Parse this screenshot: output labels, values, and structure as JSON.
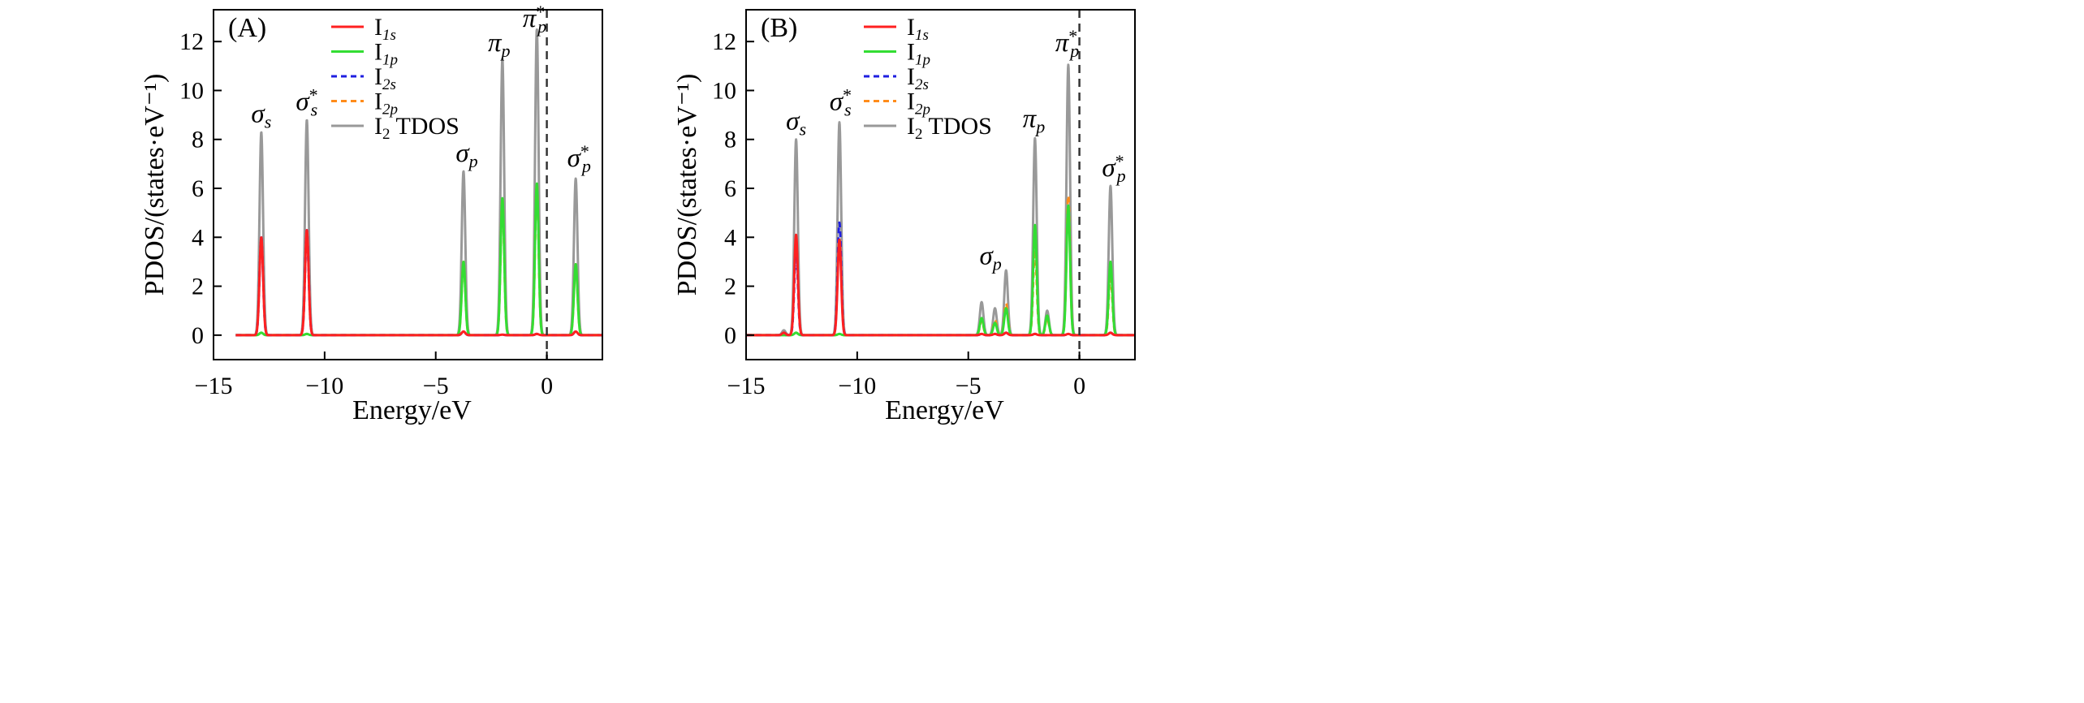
{
  "figure": {
    "panels": [
      "A",
      "B"
    ]
  },
  "chart_data": [
    {
      "type": "line",
      "panel_label": "(A)",
      "xlabel": "Energy/eV",
      "ylabel": "PDOS/(states·eV⁻¹)",
      "xlim": [
        -15,
        2.5
      ],
      "ylim": [
        -1,
        13.3
      ],
      "xticks": [
        -15,
        -10,
        -5,
        0
      ],
      "xtick_labels": [
        "−15",
        "−10",
        "−5",
        "0"
      ],
      "yticks": [
        0,
        2,
        4,
        6,
        8,
        10,
        12
      ],
      "ytick_labels": [
        "0",
        "2",
        "4",
        "6",
        "8",
        "10",
        "12"
      ],
      "fermi_level": 0,
      "x_start": -14,
      "legend": {
        "placement": "top-center",
        "entries": [
          {
            "base": "I",
            "sub": "1s",
            "tail": "",
            "color": "#ff2020",
            "dash": "solid"
          },
          {
            "base": "I",
            "sub": "1p",
            "tail": "",
            "color": "#33dd33",
            "dash": "solid"
          },
          {
            "base": "I",
            "sub": "2s",
            "tail": "",
            "color": "#1f1fe0",
            "dash": "dashed"
          },
          {
            "base": "I",
            "sub": "2p",
            "tail": "",
            "color": "#ff8c1a",
            "dash": "dashed"
          },
          {
            "base": "I",
            "sub": "2",
            "tail": " TDOS",
            "color": "#999999",
            "dash": "solid"
          }
        ]
      },
      "series": [
        {
          "name": "I1s",
          "color": "#ff2020",
          "dash": "solid",
          "width": 0.08,
          "peaks": [
            [
              -12.85,
              4.0
            ],
            [
              -10.8,
              4.3
            ],
            [
              -3.75,
              0.15
            ],
            [
              -2.0,
              0.02
            ],
            [
              -0.45,
              0.05
            ],
            [
              1.3,
              0.15
            ]
          ]
        },
        {
          "name": "I1p",
          "color": "#33dd33",
          "dash": "solid",
          "width": 0.08,
          "peaks": [
            [
              -12.85,
              0.1
            ],
            [
              -10.8,
              0.05
            ],
            [
              -3.75,
              3.0
            ],
            [
              -2.0,
              5.6
            ],
            [
              -0.45,
              6.2
            ],
            [
              1.3,
              2.9
            ]
          ]
        },
        {
          "name": "I2s",
          "color": "#1f1fe0",
          "dash": "dashed",
          "width": 0.08,
          "peaks": [
            [
              -12.85,
              4.0
            ],
            [
              -10.8,
              4.3
            ],
            [
              -3.75,
              0.15
            ],
            [
              -2.0,
              0.02
            ],
            [
              -0.45,
              0.05
            ],
            [
              1.3,
              0.15
            ]
          ]
        },
        {
          "name": "I2p",
          "color": "#ff8c1a",
          "dash": "dashed",
          "width": 0.08,
          "peaks": [
            [
              -12.85,
              0.1
            ],
            [
              -10.8,
              0.05
            ],
            [
              -3.75,
              3.0
            ],
            [
              -2.0,
              5.6
            ],
            [
              -0.45,
              6.2
            ],
            [
              1.3,
              2.9
            ]
          ]
        },
        {
          "name": "I2 TDOS",
          "color": "#999999",
          "dash": "solid",
          "width": 0.08,
          "peaks": [
            [
              -12.85,
              8.3
            ],
            [
              -10.8,
              8.8
            ],
            [
              -3.75,
              6.7
            ],
            [
              -2.0,
              11.3
            ],
            [
              -0.45,
              12.5
            ],
            [
              1.3,
              6.4
            ]
          ]
        }
      ],
      "peak_labels": [
        {
          "x": -12.85,
          "y": 8.7,
          "base": "σ",
          "sub": "s",
          "star": ""
        },
        {
          "x": -10.8,
          "y": 9.2,
          "base": "σ",
          "sub": "s",
          "star": "*"
        },
        {
          "x": -3.6,
          "y": 7.1,
          "base": "σ",
          "sub": "p",
          "star": ""
        },
        {
          "x": -2.15,
          "y": 11.6,
          "base": "π",
          "sub": "p",
          "star": ""
        },
        {
          "x": -0.55,
          "y": 12.6,
          "base": "π",
          "sub": "p",
          "star": "*"
        },
        {
          "x": 1.45,
          "y": 6.9,
          "base": "σ",
          "sub": "p",
          "star": "*"
        }
      ]
    },
    {
      "type": "line",
      "panel_label": "(B)",
      "xlabel": "Energy/eV",
      "ylabel": "PDOS/(states·eV⁻¹)",
      "xlim": [
        -15,
        2.5
      ],
      "ylim": [
        -1,
        13.3
      ],
      "xticks": [
        -15,
        -10,
        -5,
        0
      ],
      "xtick_labels": [
        "−15",
        "−10",
        "−5",
        "0"
      ],
      "yticks": [
        0,
        2,
        4,
        6,
        8,
        10,
        12
      ],
      "ytick_labels": [
        "0",
        "2",
        "4",
        "6",
        "8",
        "10",
        "12"
      ],
      "fermi_level": 0,
      "x_start": -15,
      "legend": {
        "placement": "top-center",
        "entries": [
          {
            "base": "I",
            "sub": "1s",
            "tail": "",
            "color": "#ff2020",
            "dash": "solid"
          },
          {
            "base": "I",
            "sub": "1p",
            "tail": "",
            "color": "#33dd33",
            "dash": "solid"
          },
          {
            "base": "I",
            "sub": "2s",
            "tail": "",
            "color": "#1f1fe0",
            "dash": "dashed"
          },
          {
            "base": "I",
            "sub": "2p",
            "tail": "",
            "color": "#ff8c1a",
            "dash": "dashed"
          },
          {
            "base": "I",
            "sub": "2",
            "tail": " TDOS",
            "color": "#999999",
            "dash": "solid"
          }
        ]
      },
      "series": [
        {
          "name": "I1s",
          "color": "#ff2020",
          "dash": "solid",
          "width": 0.08,
          "peaks": [
            [
              -13.3,
              0.1
            ],
            [
              -12.75,
              4.1
            ],
            [
              -10.8,
              3.9
            ],
            [
              -4.4,
              0.05
            ],
            [
              -3.8,
              0.05
            ],
            [
              -3.3,
              0.1
            ],
            [
              -2.0,
              0.05
            ],
            [
              -0.5,
              0.05
            ],
            [
              1.4,
              0.1
            ]
          ]
        },
        {
          "name": "I1p",
          "color": "#33dd33",
          "dash": "solid",
          "width": 0.08,
          "peaks": [
            [
              -12.75,
              0.1
            ],
            [
              -10.8,
              0.05
            ],
            [
              -4.4,
              0.7
            ],
            [
              -3.8,
              0.5
            ],
            [
              -3.3,
              1.1
            ],
            [
              -2.0,
              4.5
            ],
            [
              -1.45,
              0.8
            ],
            [
              -0.5,
              5.3
            ],
            [
              1.4,
              3.0
            ]
          ]
        },
        {
          "name": "I2s",
          "color": "#1f1fe0",
          "dash": "dashed",
          "width": 0.08,
          "peaks": [
            [
              -13.3,
              0.1
            ],
            [
              -12.75,
              3.5
            ],
            [
              -10.8,
              4.6
            ],
            [
              -4.4,
              0.05
            ],
            [
              -3.8,
              0.05
            ],
            [
              -3.3,
              0.1
            ],
            [
              -2.0,
              0.05
            ],
            [
              -0.5,
              0.05
            ],
            [
              1.4,
              0.1
            ]
          ]
        },
        {
          "name": "I2p",
          "color": "#ff8c1a",
          "dash": "dashed",
          "width": 0.08,
          "peaks": [
            [
              -12.75,
              0.1
            ],
            [
              -10.8,
              0.05
            ],
            [
              -4.4,
              0.6
            ],
            [
              -3.8,
              0.6
            ],
            [
              -3.3,
              1.3
            ],
            [
              -2.0,
              3.5
            ],
            [
              -1.45,
              0.7
            ],
            [
              -0.5,
              5.7
            ],
            [
              1.4,
              2.5
            ]
          ]
        },
        {
          "name": "I2 TDOS",
          "color": "#999999",
          "dash": "solid",
          "width": 0.08,
          "peaks": [
            [
              -13.3,
              0.2
            ],
            [
              -12.75,
              8.0
            ],
            [
              -10.8,
              8.7
            ],
            [
              -4.4,
              1.35
            ],
            [
              -3.8,
              1.1
            ],
            [
              -3.3,
              2.65
            ],
            [
              -2.0,
              8.05
            ],
            [
              -1.45,
              1.0
            ],
            [
              -0.5,
              11.05
            ],
            [
              1.4,
              6.1
            ]
          ]
        }
      ],
      "peak_labels": [
        {
          "x": -12.75,
          "y": 8.4,
          "base": "σ",
          "sub": "s",
          "star": ""
        },
        {
          "x": -10.75,
          "y": 9.2,
          "base": "σ",
          "sub": "s",
          "star": "*"
        },
        {
          "x": -4.0,
          "y": 2.9,
          "base": "σ",
          "sub": "p",
          "star": ""
        },
        {
          "x": -2.05,
          "y": 8.5,
          "base": "π",
          "sub": "p",
          "star": ""
        },
        {
          "x": -0.55,
          "y": 11.6,
          "base": "π",
          "sub": "p",
          "star": "*"
        },
        {
          "x": 1.55,
          "y": 6.5,
          "base": "σ",
          "sub": "p",
          "star": "*"
        }
      ]
    }
  ]
}
